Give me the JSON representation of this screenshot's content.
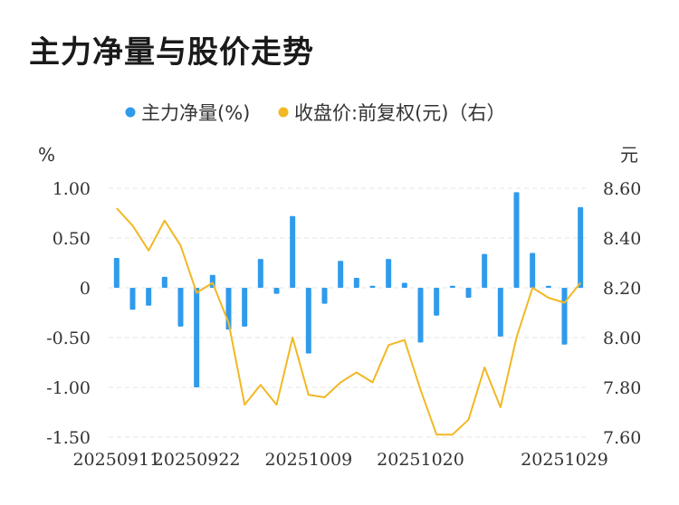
{
  "chart_data": {
    "type": "bar+line",
    "title": "主力净量与股价走势",
    "legend": {
      "placement": "top-center",
      "items": [
        {
          "label": "主力净量(%)",
          "color": "#2f9bec"
        },
        {
          "label": "收盘价:前复权(元)（右）",
          "color": "#f2b824"
        }
      ]
    },
    "left_axis": {
      "unit": "%",
      "ylim": [
        -1.5,
        1.0
      ],
      "ticks": [
        "1.00",
        "0.50",
        "0",
        "-0.50",
        "-1.00",
        "-1.50"
      ],
      "tick_values": [
        1.0,
        0.5,
        0,
        -0.5,
        -1.0,
        -1.5
      ]
    },
    "right_axis": {
      "unit": "元",
      "ylim": [
        7.6,
        8.6
      ],
      "ticks": [
        "8.60",
        "8.40",
        "8.20",
        "8.00",
        "7.80",
        "7.60"
      ],
      "tick_values": [
        8.6,
        8.4,
        8.2,
        8.0,
        7.8,
        7.6
      ]
    },
    "x_tick_labels": [
      "20250911",
      "20250922",
      "20251009",
      "20251020",
      "20251029"
    ],
    "x_tick_indices": [
      0,
      5,
      12,
      19,
      28
    ],
    "grid": true,
    "series": [
      {
        "name": "主力净量(%)",
        "type": "bar",
        "axis": "left",
        "color": "#2f9bec",
        "values": [
          0.3,
          -0.22,
          -0.18,
          0.11,
          -0.39,
          -1.0,
          0.13,
          -0.42,
          -0.39,
          0.29,
          -0.06,
          0.72,
          -0.66,
          -0.16,
          0.27,
          0.1,
          0.02,
          0.29,
          0.05,
          -0.55,
          -0.28,
          0.02,
          -0.1,
          0.34,
          -0.49,
          0.96,
          0.35,
          0.02,
          -0.57,
          0.81
        ]
      },
      {
        "name": "收盘价:前复权(元)（右）",
        "type": "line",
        "axis": "right",
        "color": "#f2b824",
        "values": [
          8.52,
          8.45,
          8.35,
          8.47,
          8.37,
          8.18,
          8.22,
          8.06,
          7.73,
          7.81,
          7.73,
          8.0,
          7.77,
          7.76,
          7.82,
          7.86,
          7.82,
          7.97,
          7.99,
          7.79,
          7.61,
          7.61,
          7.67,
          7.88,
          7.72,
          8.0,
          8.2,
          8.16,
          8.14,
          8.22
        ]
      }
    ]
  }
}
